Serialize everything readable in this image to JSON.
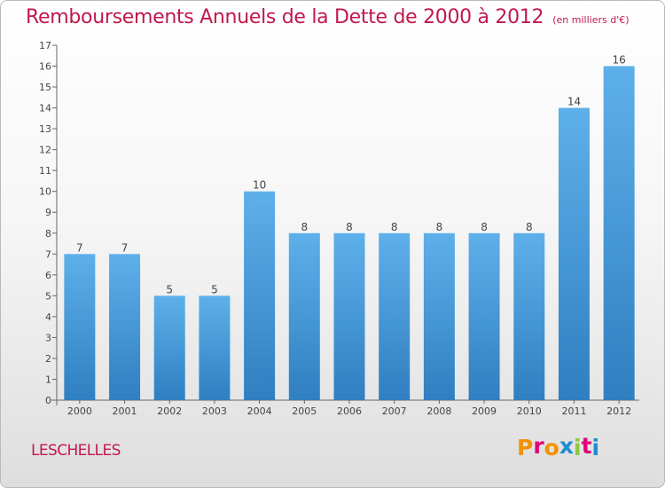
{
  "header": {
    "title": "Remboursements Annuels de la Dette de 2000 à 2012",
    "unit": "(en milliers d'€)"
  },
  "footer": {
    "commune": "LESCHELLES",
    "logo": "Proxiti"
  },
  "colors": {
    "title": "#c1184c",
    "bar_top": "#5eb0ea",
    "bar_bottom": "#2f7fc1",
    "logo_letters": [
      "#f39200",
      "#e2007a",
      "#f39200",
      "#1b8fd1",
      "#8cc63f",
      "#e2007a",
      "#1b8fd1"
    ]
  },
  "chart_data": {
    "type": "bar",
    "title": "Remboursements Annuels de la Dette de 2000 à 2012",
    "xlabel": "",
    "ylabel": "",
    "categories": [
      "2000",
      "2001",
      "2002",
      "2003",
      "2004",
      "2005",
      "2006",
      "2007",
      "2008",
      "2009",
      "2010",
      "2011",
      "2012"
    ],
    "values": [
      7,
      7,
      5,
      5,
      10,
      8,
      8,
      8,
      8,
      8,
      8,
      14,
      16
    ],
    "ylim": [
      0,
      17
    ],
    "yticks": [
      "0",
      "1",
      "2",
      "3",
      "4",
      "5",
      "6",
      "7",
      "8",
      "9",
      "10",
      "11",
      "12",
      "13",
      "14",
      "15",
      "16",
      "17"
    ],
    "grid": false,
    "legend": "none"
  }
}
